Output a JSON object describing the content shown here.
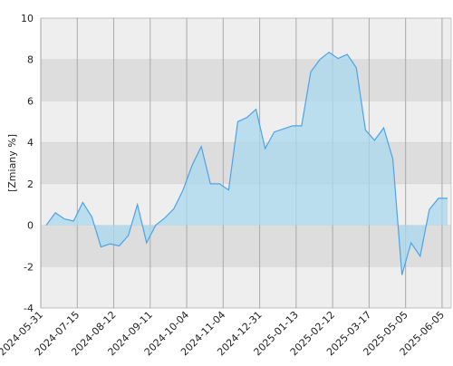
{
  "chart_data": {
    "type": "area",
    "y_label": "[Zmiany %]",
    "values": [
      0,
      0.6,
      0.3,
      0.2,
      1.1,
      0.4,
      -1.05,
      -0.9,
      -1.0,
      -0.5,
      1.0,
      -0.85,
      0,
      0.35,
      0.8,
      1.7,
      2.9,
      3.8,
      2.0,
      2.0,
      1.7,
      5.0,
      5.2,
      5.6,
      3.7,
      4.5,
      4.65,
      4.8,
      4.8,
      7.4,
      8.0,
      8.35,
      8.05,
      8.25,
      7.6,
      4.6,
      4.1,
      4.7,
      3.2,
      -2.4,
      -0.85,
      -1.5,
      0.75,
      1.3,
      1.3
    ],
    "color": "#4da3e8",
    "fill": "#a8d8ee",
    "xlim": [
      -0.6,
      44.4
    ],
    "xticks": [
      {
        "value": -0.6,
        "label": "2024-05-31"
      },
      {
        "value": 3.4,
        "label": "2024-07-15"
      },
      {
        "value": 7.4,
        "label": "2024-08-12"
      },
      {
        "value": 11.4,
        "label": "2024-09-11"
      },
      {
        "value": 15.4,
        "label": "2024-10-04"
      },
      {
        "value": 19.4,
        "label": "2024-11-04"
      },
      {
        "value": 23.4,
        "label": "2024-12-31"
      },
      {
        "value": 27.4,
        "label": "2025-01-13"
      },
      {
        "value": 31.4,
        "label": "2025-02-12"
      },
      {
        "value": 35.4,
        "label": "2025-03-17"
      },
      {
        "value": 39.4,
        "label": "2025-05-05"
      },
      {
        "value": 43.4,
        "label": "2025-06-05"
      }
    ],
    "ylim": [
      -4,
      10
    ],
    "yticks": [
      -4,
      -2,
      0,
      2,
      4,
      6,
      8,
      10
    ],
    "grid": true
  }
}
